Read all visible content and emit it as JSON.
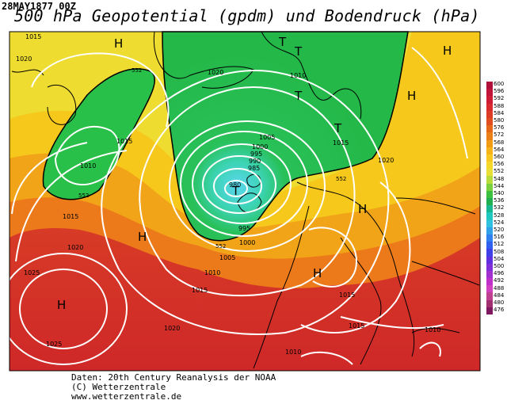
{
  "date_label": "28MAY1877 00Z",
  "title": "500 hPa Geopotential (gpdm) und Bodendruck (hPa)",
  "credits": [
    "Daten: 20th Century Reanalysis der NOAA",
    "(C) Wetterzentrale",
    "www.wetterzentrale.de"
  ],
  "colorbar": {
    "labels": [
      "600",
      "596",
      "592",
      "588",
      "584",
      "580",
      "576",
      "572",
      "568",
      "564",
      "560",
      "556",
      "552",
      "548",
      "544",
      "540",
      "536",
      "532",
      "528",
      "524",
      "520",
      "516",
      "512",
      "508",
      "504",
      "500",
      "496",
      "492",
      "488",
      "484",
      "480",
      "476"
    ],
    "colors": [
      "#b0103a",
      "#c0143a",
      "#cf1c36",
      "#d92a2e",
      "#dc3b26",
      "#e04e20",
      "#e6661a",
      "#ec8018",
      "#f29c16",
      "#f6b41a",
      "#f8c820",
      "#f6d82a",
      "#e8e036",
      "#b8dc3a",
      "#7cd040",
      "#3cc040",
      "#20b050",
      "#18b890",
      "#20c8c0",
      "#30c0e0",
      "#30a0e8",
      "#3080f0",
      "#3060f0",
      "#4040e8",
      "#6030e0",
      "#8030d8",
      "#a030d0",
      "#c030c8",
      "#d040c0",
      "#c04090",
      "#a03070",
      "#801860"
    ]
  },
  "map": {
    "isobar_labels": [
      "1015",
      "1020",
      "1010",
      "1015",
      "1015",
      "1010",
      "1015",
      "1005",
      "1000",
      "995",
      "990",
      "985",
      "980",
      "995",
      "1000",
      "1005",
      "1010",
      "1015",
      "1020",
      "1020",
      "1020",
      "1025",
      "1025",
      "1010",
      "1015",
      "1020",
      "1010",
      "1015"
    ],
    "geopotential_labels": [
      "552",
      "552",
      "552",
      "552"
    ],
    "high_labels": [
      "H",
      "H",
      "H",
      "H",
      "H",
      "H",
      "H"
    ],
    "low_labels": [
      "T",
      "T",
      "T",
      "T",
      "T"
    ]
  }
}
